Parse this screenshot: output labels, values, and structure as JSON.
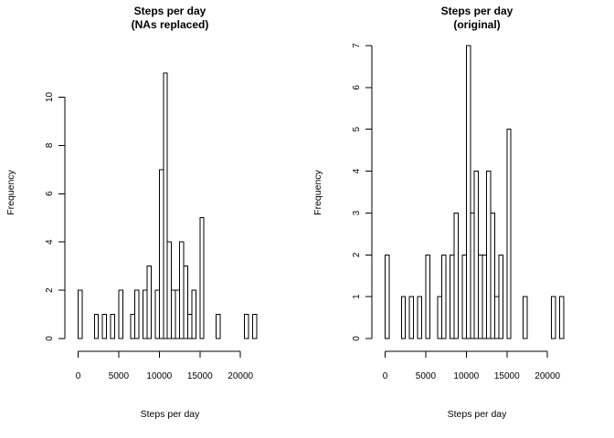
{
  "chart_data": [
    {
      "type": "bar",
      "title_line1": "Steps per day",
      "title_line2": "(NAs replaced)",
      "xlabel": "Steps per day",
      "ylabel": "Frequency",
      "bin_width": 500,
      "xlim": [
        0,
        21500
      ],
      "ylim": [
        0,
        11
      ],
      "x_ticks": [
        0,
        5000,
        10000,
        15000,
        20000
      ],
      "y_ticks": [
        0,
        2,
        4,
        6,
        8,
        10
      ],
      "x_tick_labels": [
        "0",
        "5000",
        "10000",
        "15000",
        "20000"
      ],
      "y_tick_labels": [
        "0",
        "2",
        "4",
        "6",
        "8",
        "10"
      ],
      "counts": [
        2,
        0,
        0,
        0,
        1,
        0,
        1,
        0,
        1,
        0,
        2,
        0,
        0,
        1,
        2,
        0,
        2,
        3,
        0,
        2,
        7,
        11,
        4,
        2,
        2,
        4,
        3,
        1,
        2,
        0,
        5,
        0,
        0,
        0,
        1,
        0,
        0,
        0,
        0,
        0,
        0,
        1,
        0,
        1
      ]
    },
    {
      "type": "bar",
      "title_line1": "Steps per day",
      "title_line2": "(original)",
      "xlabel": "Steps per day",
      "ylabel": "Frequency",
      "bin_width": 500,
      "xlim": [
        0,
        21500
      ],
      "ylim": [
        0,
        7
      ],
      "x_ticks": [
        0,
        5000,
        10000,
        15000,
        20000
      ],
      "y_ticks": [
        0,
        1,
        2,
        3,
        4,
        5,
        6,
        7
      ],
      "x_tick_labels": [
        "0",
        "5000",
        "10000",
        "15000",
        "20000"
      ],
      "y_tick_labels": [
        "0",
        "1",
        "2",
        "3",
        "4",
        "5",
        "6",
        "7"
      ],
      "counts": [
        2,
        0,
        0,
        0,
        1,
        0,
        1,
        0,
        1,
        0,
        2,
        0,
        0,
        1,
        2,
        0,
        2,
        3,
        0,
        2,
        7,
        3,
        4,
        2,
        2,
        4,
        3,
        1,
        2,
        0,
        5,
        0,
        0,
        0,
        1,
        0,
        0,
        0,
        0,
        0,
        0,
        1,
        0,
        1
      ]
    }
  ]
}
